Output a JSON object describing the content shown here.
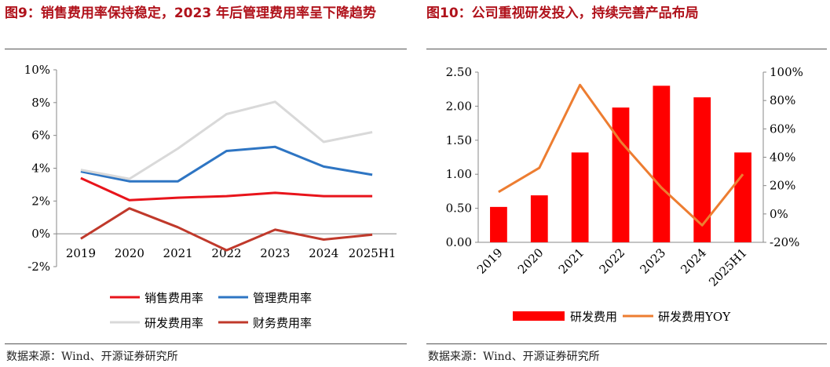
{
  "left": {
    "title": "图9：销售费用率保持稳定，2023 年后管理费用率呈下降趋势",
    "source": "数据来源：Wind、开源证券研究所"
  },
  "right": {
    "title": "图10：公司重视研发投入，持续完善产品布局",
    "source": "数据来源：Wind、开源证券研究所"
  },
  "chart_data": [
    {
      "type": "line",
      "x": [
        "2019",
        "2020",
        "2021",
        "2022",
        "2023",
        "2024",
        "2025H1"
      ],
      "ylim": [
        -2,
        10
      ],
      "yticks": [
        "-2%",
        "0%",
        "2%",
        "4%",
        "6%",
        "8%",
        "10%"
      ],
      "ytick_values": [
        -2,
        0,
        2,
        4,
        6,
        8,
        10
      ],
      "legend_position": "bottom",
      "grid": false,
      "series": [
        {
          "name": "销售费用率",
          "color": "#e8141b",
          "values": [
            3.4,
            2.05,
            2.2,
            2.3,
            2.5,
            2.3,
            2.3
          ]
        },
        {
          "name": "管理费用率",
          "color": "#2e75c3",
          "values": [
            3.8,
            3.2,
            3.2,
            5.05,
            5.3,
            4.1,
            3.6
          ]
        },
        {
          "name": "研发费用率",
          "color": "#d9d9d9",
          "values": [
            3.9,
            3.35,
            5.2,
            7.3,
            8.05,
            5.6,
            6.2
          ]
        },
        {
          "name": "财务费用率",
          "color": "#c0392b",
          "values": [
            -0.3,
            1.55,
            0.4,
            -1.0,
            0.25,
            -0.35,
            -0.05
          ]
        }
      ]
    },
    {
      "type": "bar+line",
      "x": [
        "2019",
        "2020",
        "2021",
        "2022",
        "2023",
        "2024",
        "2025H1"
      ],
      "ylim_left": [
        0,
        2.5
      ],
      "yticks_left": [
        "0.00",
        "0.50",
        "1.00",
        "1.50",
        "2.00",
        "2.50"
      ],
      "ytick_values_left": [
        0,
        0.5,
        1,
        1.5,
        2,
        2.5
      ],
      "ylim_right": [
        -20,
        100
      ],
      "yticks_right": [
        "-20%",
        "0%",
        "20%",
        "40%",
        "60%",
        "80%",
        "100%"
      ],
      "ytick_values_right": [
        -20,
        0,
        20,
        40,
        60,
        80,
        100
      ],
      "legend_position": "bottom",
      "grid": false,
      "series": [
        {
          "name": "研发费用",
          "kind": "bar",
          "axis": "left",
          "color": "#ff0000",
          "values": [
            0.52,
            0.69,
            1.32,
            1.98,
            2.3,
            2.13,
            1.32
          ]
        },
        {
          "name": "研发费用YOY",
          "kind": "line",
          "axis": "right",
          "color": "#ed7d31",
          "values": [
            15.5,
            32.5,
            91.0,
            51.0,
            18.5,
            -8.0,
            28.0
          ]
        }
      ]
    }
  ]
}
